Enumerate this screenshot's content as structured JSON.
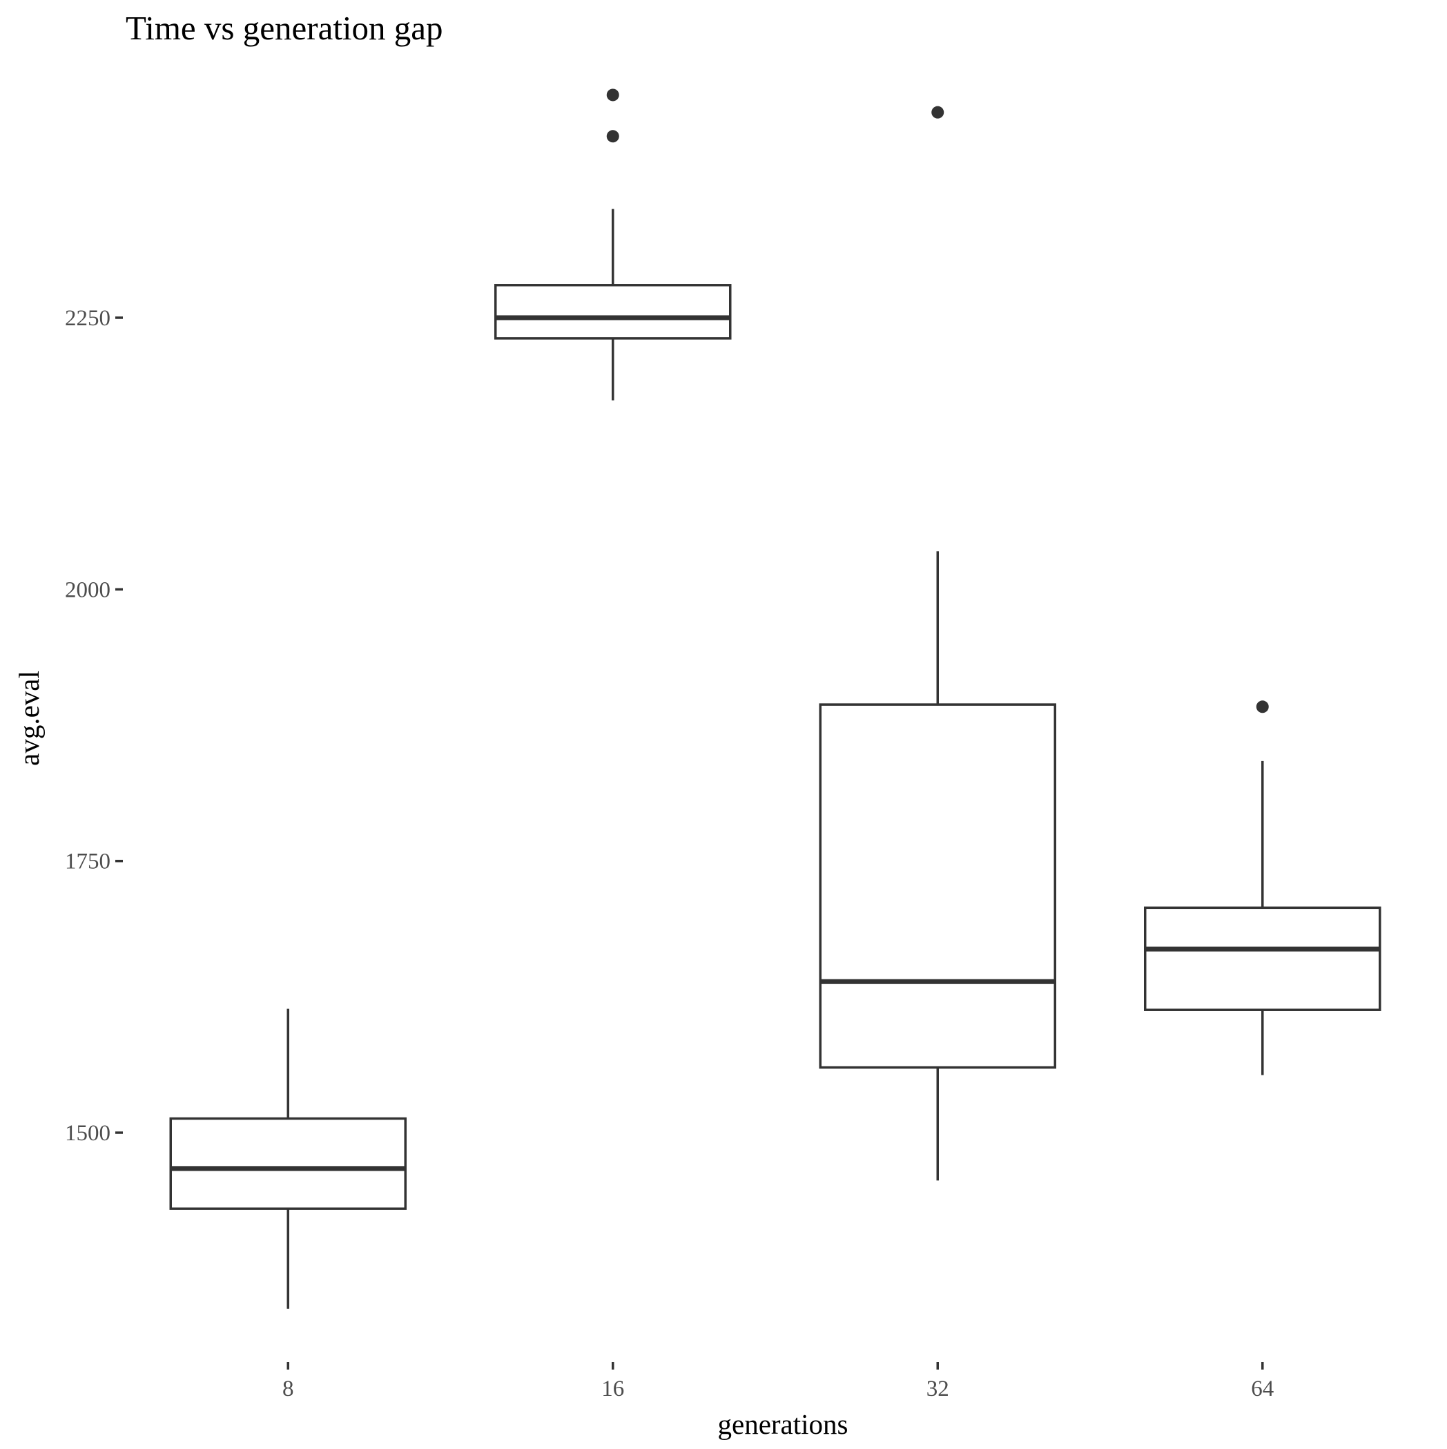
{
  "chart_data": {
    "type": "boxplot",
    "title": "Time vs generation gap",
    "xlabel": "generations",
    "ylabel": "avg.eval",
    "categories": [
      "8",
      "16",
      "32",
      "64"
    ],
    "yticks": [
      1500,
      1750,
      2000,
      2250
    ],
    "ylim": [
      1300,
      2515
    ],
    "grid": false,
    "legend": "none",
    "boxes": [
      {
        "category": "8",
        "lower_whisker": 1338,
        "q1": 1430,
        "median": 1467,
        "q3": 1513,
        "upper_whisker": 1614,
        "outliers": []
      },
      {
        "category": "16",
        "lower_whisker": 2174,
        "q1": 2231,
        "median": 2250,
        "q3": 2280,
        "upper_whisker": 2350,
        "outliers": [
          2417,
          2455
        ]
      },
      {
        "category": "32",
        "lower_whisker": 1456,
        "q1": 1560,
        "median": 1639,
        "q3": 1894,
        "upper_whisker": 2035,
        "outliers": [
          2439
        ]
      },
      {
        "category": "64",
        "lower_whisker": 1553,
        "q1": 1613,
        "median": 1669,
        "q3": 1707,
        "upper_whisker": 1842,
        "outliers": [
          1892
        ]
      }
    ],
    "colors": {
      "box_stroke": "#333333",
      "outlier_fill": "#333333",
      "tick_label": "#4d4d4d",
      "tick_mark": "#333333",
      "background": "#ffffff"
    }
  }
}
